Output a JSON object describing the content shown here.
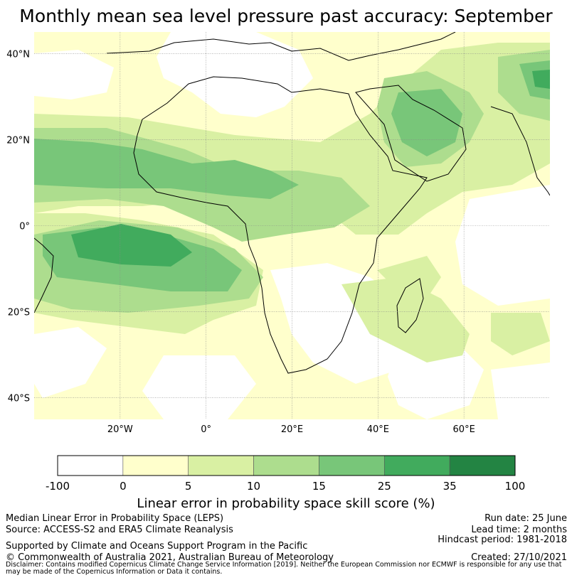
{
  "title": "Monthly mean sea level pressure past accuracy: September",
  "map": {
    "lat_labels": [
      "40°N",
      "20°N",
      "0°",
      "20°S",
      "40°S"
    ],
    "lon_labels": [
      "20°W",
      "0°",
      "20°E",
      "40°E",
      "60°E"
    ],
    "lat_values": [
      40,
      20,
      0,
      -20,
      -40
    ],
    "lon_values": [
      -20,
      0,
      20,
      40,
      60
    ],
    "extent": {
      "lon": [
        -40,
        80
      ],
      "lat": [
        -45,
        45
      ]
    },
    "gridlines": true
  },
  "colorbar": {
    "title": "Linear error in probability space skill score (%)",
    "ticks": [
      "-100",
      "0",
      "5",
      "10",
      "15",
      "25",
      "35",
      "100"
    ],
    "colors": [
      "#ffffff",
      "#ffffcc",
      "#d9f0a3",
      "#addd8e",
      "#78c679",
      "#41ab5d",
      "#238443"
    ]
  },
  "footer": {
    "left_line1": "Median Linear Error in Probability Space (LEPS)",
    "left_line2": "Source: ACCESS-S2 and ERA5 Climate Reanalysis",
    "left_line3": "Supported by Climate and Oceans Support Program in the Pacific",
    "left_line4": "© Commonwealth of Australia 2021, Australian Bureau of Meteorology",
    "right_line1": "Run date: 25 June",
    "right_line2": "Lead time: 2 months",
    "right_line3": "Hindcast period: 1981-2018",
    "right_line4": "Created: 27/10/2021",
    "disclaimer": "Disclaimer: Contains modified Copernicus Climate Change Service Information [2019]. Neither the European Commission nor ECMWF is responsible for any use that may be made of the Copernicus Information or Data it contains."
  }
}
